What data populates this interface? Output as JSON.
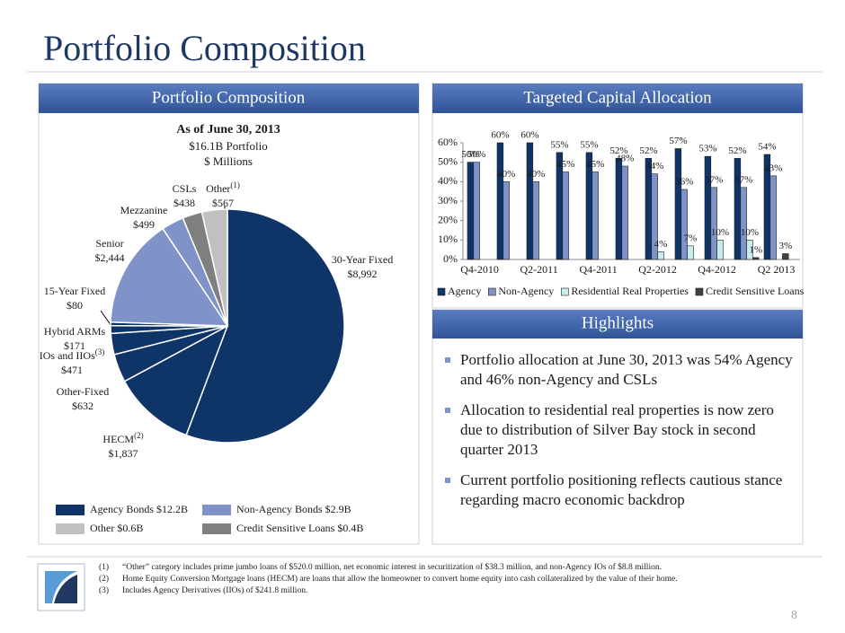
{
  "title": "Portfolio Composition",
  "chart_data": [
    {
      "type": "pie",
      "panel_title": "Portfolio Composition",
      "title": "As of June 30, 2013",
      "subtitle": "$16.1B Portfolio",
      "unit": "$ Millions",
      "categories": [
        "30-Year Fixed",
        "HECM",
        "Other-Fixed",
        "IOs and IIOs",
        "Hybrid ARMs",
        "15-Year Fixed",
        "Senior",
        "Mezzanine",
        "CSLs",
        "Other"
      ],
      "category_notes": [
        null,
        "(2)",
        null,
        "(3)",
        null,
        null,
        null,
        null,
        null,
        "(1)"
      ],
      "values": [
        8992,
        1837,
        632,
        471,
        171,
        80,
        2444,
        499,
        438,
        567
      ],
      "value_labels": [
        "$8,992",
        "$1,837",
        "$632",
        "$471",
        "$171",
        "$80",
        "$2,444",
        "$499",
        "$438",
        "$567"
      ],
      "colors": [
        "#0f3468",
        "#0f3468",
        "#0f3468",
        "#0f3468",
        "#0f3468",
        "#0f3468",
        "#7f93c9",
        "#7f93c9",
        "#7f7f7f",
        "#c0c0c0"
      ],
      "legend": [
        {
          "name": "Agency Bonds $12.2B",
          "color": "#0f3468"
        },
        {
          "name": "Non-Agency Bonds $2.9B",
          "color": "#7f93c9"
        },
        {
          "name": "Other $0.6B",
          "color": "#c0c0c0"
        },
        {
          "name": "Credit Sensitive Loans $0.4B",
          "color": "#7f7f7f"
        }
      ]
    },
    {
      "type": "bar",
      "panel_title": "Targeted Capital Allocation",
      "categories": [
        "Q4-2010",
        null,
        "Q2-2011",
        null,
        "Q4-2011",
        null,
        "Q2-2012",
        null,
        "Q4-2012",
        null,
        "Q2 2013"
      ],
      "series": [
        {
          "name": "Agency",
          "color": "#0f3468",
          "values": [
            50,
            60,
            60,
            55,
            55,
            52,
            52,
            57,
            53,
            52,
            54
          ],
          "value_labels": [
            "50%",
            "60%",
            "60%",
            "55%",
            "55%",
            "52%",
            "52%",
            "57%",
            "53%",
            "52%",
            "54%"
          ]
        },
        {
          "name": "Non-Agency",
          "color": "#7f93c9",
          "values": [
            50,
            40,
            40,
            45,
            45,
            48,
            44,
            36,
            37,
            37,
            43
          ],
          "value_labels": [
            "50%",
            "40%",
            "40%",
            "45%",
            "45%",
            "48%",
            "44%",
            "36%",
            "37%",
            "37%",
            "43%"
          ]
        },
        {
          "name": "Residential Real Properties",
          "color": "#c6ecec",
          "values": [
            null,
            null,
            null,
            null,
            null,
            null,
            4,
            7,
            10,
            10,
            null
          ],
          "value_labels": [
            null,
            null,
            null,
            null,
            null,
            null,
            "4%",
            "7%",
            "10%",
            "10%",
            null
          ]
        },
        {
          "name": "Credit Sensitive Loans",
          "color": "#404040",
          "values": [
            null,
            null,
            null,
            null,
            null,
            null,
            null,
            null,
            null,
            1,
            3
          ],
          "value_labels": [
            null,
            null,
            null,
            null,
            null,
            null,
            null,
            null,
            null,
            "1%",
            "3%"
          ]
        }
      ],
      "ylim": [
        0,
        60
      ],
      "yticks": [
        {
          "value": 0,
          "label": "0%"
        },
        {
          "value": 10,
          "label": "10%"
        },
        {
          "value": 20,
          "label": "20%"
        },
        {
          "value": 30,
          "label": "30%"
        },
        {
          "value": 40,
          "label": "40%"
        },
        {
          "value": 50,
          "label": "50%"
        },
        {
          "value": 60,
          "label": "60%"
        }
      ],
      "legend_position": "bottom"
    }
  ],
  "highlights": {
    "title": "Highlights",
    "items": [
      "Portfolio allocation at June 30, 2013 was 54% Agency and 46% non-Agency and CSLs",
      "Allocation to residential real properties is now zero due to distribution of Silver Bay stock in second quarter 2013",
      "Current portfolio positioning reflects cautious stance regarding macro economic backdrop"
    ]
  },
  "footnotes": [
    {
      "number": "(1)",
      "text": "“Other” category includes prime jumbo loans of $520.0 million, net economic interest in securitization of $38.3 million, and non-Agency IOs of $8.8 million."
    },
    {
      "number": "(2)",
      "text": "Home Equity Conversion Mortgage loans (HECM) are loans that allow the homeowner to convert home equity into cash collateralized by the value of their home."
    },
    {
      "number": "(3)",
      "text": "Includes Agency Derivatives (IIOs) of $241.8 million."
    }
  ],
  "page_number": "8"
}
